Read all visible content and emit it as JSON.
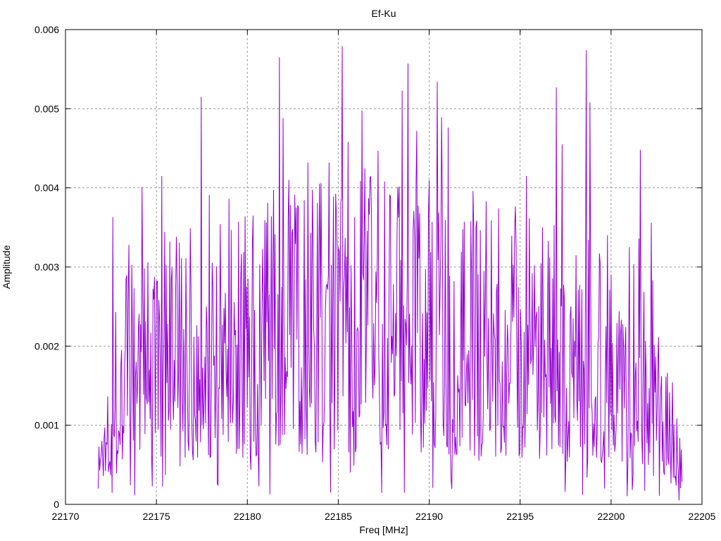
{
  "window": {
    "background": "#ffffff"
  },
  "chart_data": {
    "type": "line",
    "title": "Ef-Ku",
    "xlabel": "Freq [MHz]",
    "ylabel": "Amplitude",
    "xlim": [
      22170,
      22205
    ],
    "ylim": [
      0,
      0.006
    ],
    "xticks": [
      22170,
      22175,
      22180,
      22185,
      22190,
      22195,
      22200,
      22205
    ],
    "xtick_labels": [
      "22170",
      "22175",
      "22180",
      "22185",
      "22190",
      "22195",
      "22200",
      "22205"
    ],
    "yticks": [
      0,
      0.001,
      0.002,
      0.003,
      0.004,
      0.005,
      0.006
    ],
    "ytick_labels": [
      "0",
      "0.001",
      "0.002",
      "0.003",
      "0.004",
      "0.005",
      "0.006"
    ],
    "grid": true,
    "grid_style": "dashed",
    "legend": "none",
    "line_color": "#9400d3",
    "grid_color": "#9a9a9a",
    "axis_color": "#000000",
    "series": [
      {
        "name": "Ef-Ku",
        "x_start": 22171.8,
        "x_end": 22203.9,
        "n_points": 800,
        "noise": {
          "seed": 1337,
          "base": 0.0005,
          "span": 0.0028,
          "shape": 1.35,
          "bump_center": 22187,
          "bump_height": 0.3,
          "bump_width": 9,
          "taper_left": [
            22171.4,
            22173.0
          ],
          "taper_right": [
            22202.0,
            22203.9
          ],
          "dip_prob": 0.05,
          "dip_factor": 0.2
        },
        "peaks": [
          [
            22172.6,
            0.00363
          ],
          [
            22174.2,
            0.00401
          ],
          [
            22175.3,
            0.00415
          ],
          [
            22176.1,
            0.00338
          ],
          [
            22177.45,
            0.00515
          ],
          [
            22177.9,
            0.00391
          ],
          [
            22179.0,
            0.00386
          ],
          [
            22180.3,
            0.00365
          ],
          [
            22181.75,
            0.00565
          ],
          [
            22181.95,
            0.00488
          ],
          [
            22182.3,
            0.0041
          ],
          [
            22183.35,
            0.00432
          ],
          [
            22184.5,
            0.00432
          ],
          [
            22185.2,
            0.00579
          ],
          [
            22185.55,
            0.00458
          ],
          [
            22186.3,
            0.00498
          ],
          [
            22187.2,
            0.00447
          ],
          [
            22188.5,
            0.00523
          ],
          [
            22188.85,
            0.00557
          ],
          [
            22189.3,
            0.00472
          ],
          [
            22190.45,
            0.00534
          ],
          [
            22190.7,
            0.00489
          ],
          [
            22191.05,
            0.00476
          ],
          [
            22192.4,
            0.00396
          ],
          [
            22193.8,
            0.00374
          ],
          [
            22195.35,
            0.00415
          ],
          [
            22197.0,
            0.00527
          ],
          [
            22197.3,
            0.00455
          ],
          [
            22198.65,
            0.00574
          ],
          [
            22198.85,
            0.00508
          ],
          [
            22199.8,
            0.0034
          ],
          [
            22201.0,
            0.00325
          ],
          [
            22201.6,
            0.00448
          ],
          [
            22202.2,
            0.00356
          ]
        ]
      }
    ]
  }
}
